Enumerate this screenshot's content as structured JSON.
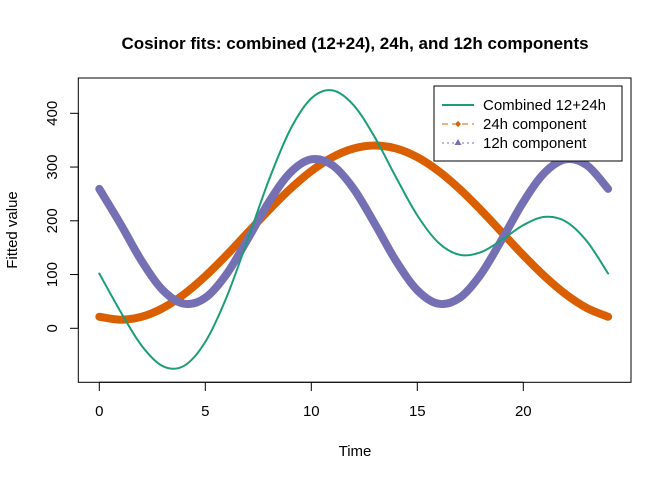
{
  "chart_data": {
    "type": "line",
    "title": "Cosinor fits: combined (12+24), 24h, and 12h components",
    "xlabel": "Time",
    "ylabel": "Fitted value",
    "xlim": [
      0,
      24
    ],
    "ylim": [
      -100,
      450
    ],
    "xticks": [
      0,
      5,
      10,
      15,
      20
    ],
    "yticks": [
      0,
      100,
      200,
      300,
      400
    ],
    "grid": false,
    "legend_position": "top-right",
    "x": [
      0,
      1,
      2,
      3,
      4,
      5,
      6,
      7,
      8,
      9,
      10,
      11,
      12,
      13,
      14,
      15,
      16,
      17,
      18,
      19,
      20,
      21,
      22,
      23,
      24
    ],
    "series": [
      {
        "name": "Combined 12+24h",
        "color": "#1b9e77",
        "style": "solid",
        "marker": "none",
        "values": [
          101.9,
          31.1,
          -32.4,
          -70.5,
          -69.8,
          -25.3,
          57.6,
          164.9,
          275.9,
          369.2,
          427.8,
          442.6,
          414.9,
          355.1,
          280.6,
          210.1,
          159.2,
          136.7,
          141.6,
          164.9,
          191.9,
          207.2,
          198.8,
          162.0,
          101.9
        ]
      },
      {
        "name": "24h component",
        "color": "#d95f02",
        "style": "dashed",
        "marker": "diamond",
        "values": [
          21.5,
          16.0,
          21.5,
          37.7,
          63.5,
          97.0,
          136.0,
          178.0,
          220.0,
          259.0,
          292.5,
          318.3,
          334.5,
          340.0,
          334.5,
          318.3,
          292.5,
          259.0,
          220.0,
          178.0,
          136.0,
          97.0,
          63.5,
          37.7,
          21.5
        ]
      },
      {
        "name": "12h component",
        "color": "#7570b3",
        "style": "dotted",
        "marker": "triangle",
        "values": [
          259.4,
          194.1,
          125.1,
          70.8,
          45.7,
          56.7,
          100.6,
          165.9,
          234.9,
          289.2,
          314.3,
          303.3,
          259.4,
          194.1,
          125.1,
          70.8,
          45.7,
          56.7,
          100.6,
          165.9,
          234.9,
          289.2,
          314.3,
          303.3,
          259.4
        ]
      }
    ]
  }
}
